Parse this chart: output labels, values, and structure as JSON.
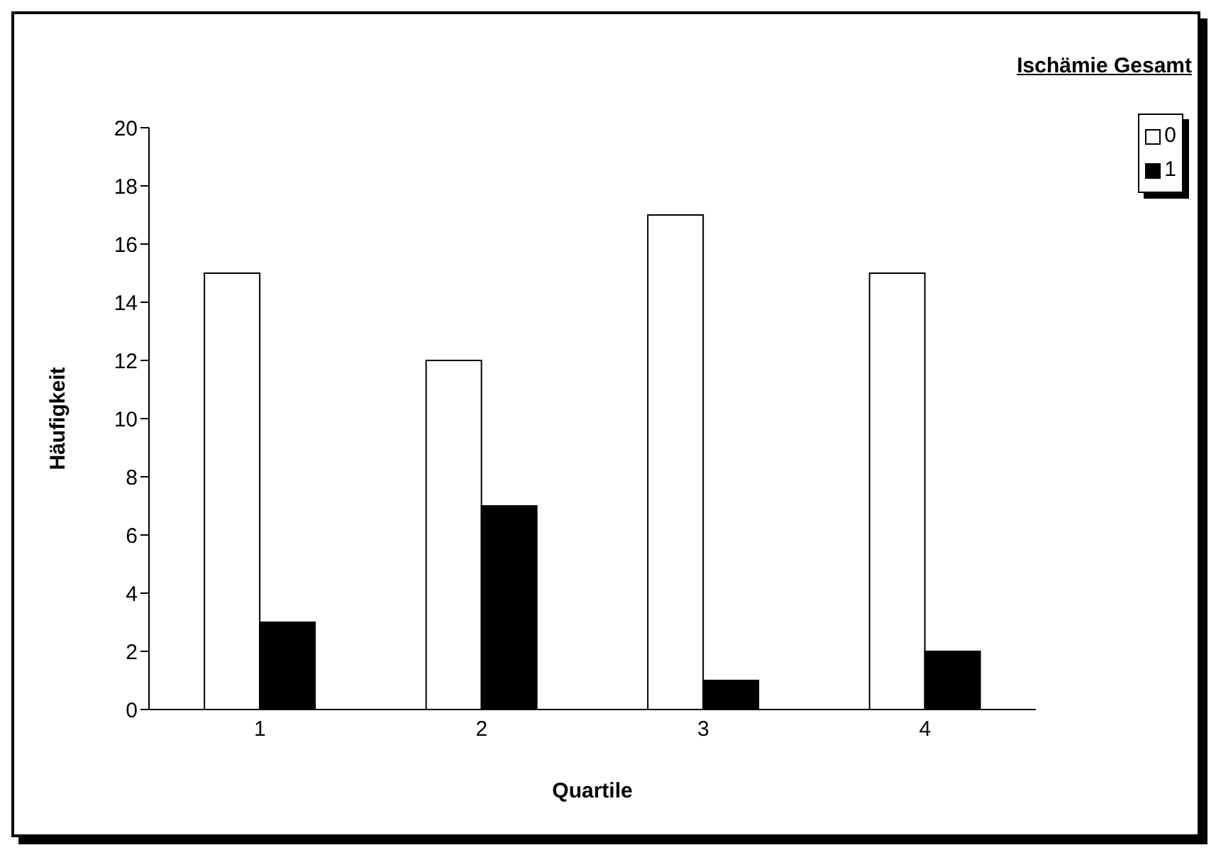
{
  "chart_data": {
    "type": "bar",
    "title": "Ischämie Gesamt",
    "xlabel": "Quartile",
    "ylabel": "Häufigkeit",
    "categories": [
      "1",
      "2",
      "3",
      "4"
    ],
    "series": [
      {
        "name": "0",
        "color": "#ffffff",
        "values": [
          15,
          12,
          17,
          15
        ]
      },
      {
        "name": "1",
        "color": "#000000",
        "values": [
          3,
          7,
          1,
          2
        ]
      }
    ],
    "ylim": [
      0,
      20
    ],
    "yticks": [
      0,
      2,
      4,
      6,
      8,
      10,
      12,
      14,
      16,
      18,
      20
    ],
    "grid": false,
    "legend": "top right"
  }
}
